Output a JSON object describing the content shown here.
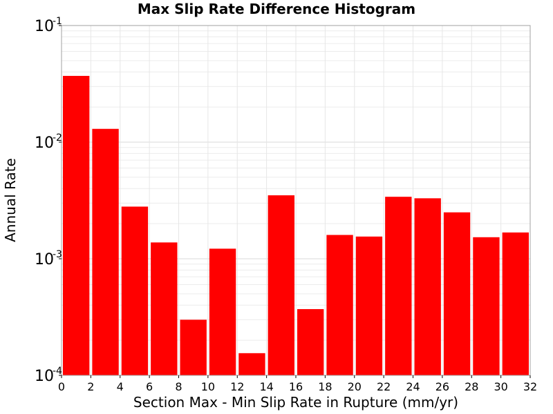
{
  "chart_data": {
    "type": "bar",
    "title": "Max Slip Rate Difference Histogram",
    "xlabel": "Section Max - Min Slip Rate in Rupture (mm/yr)",
    "ylabel": "Annual Rate",
    "y_scale": "log",
    "ylim": [
      0.0001,
      0.1
    ],
    "xlim": [
      0,
      32
    ],
    "grid": true,
    "bar_color": "#ff0000",
    "bin_width": 2,
    "x": [
      1,
      3,
      5,
      7,
      9,
      11,
      13,
      15,
      17,
      19,
      21,
      23,
      25,
      27,
      29,
      31
    ],
    "values": [
      0.037,
      0.013,
      0.0028,
      0.00138,
      0.0003,
      0.00122,
      0.000155,
      0.0035,
      0.00037,
      0.0016,
      0.00155,
      0.0034,
      0.0033,
      0.0025,
      0.00153,
      0.00168
    ],
    "x_ticks": [
      "0",
      "2",
      "4",
      "6",
      "8",
      "10",
      "12",
      "14",
      "16",
      "18",
      "20",
      "22",
      "24",
      "26",
      "28",
      "30",
      "32"
    ],
    "y_ticks": [
      {
        "base": "10",
        "exp": "-1"
      },
      {
        "base": "10",
        "exp": "-2"
      },
      {
        "base": "10",
        "exp": "-3"
      },
      {
        "base": "10",
        "exp": "-4"
      }
    ]
  }
}
